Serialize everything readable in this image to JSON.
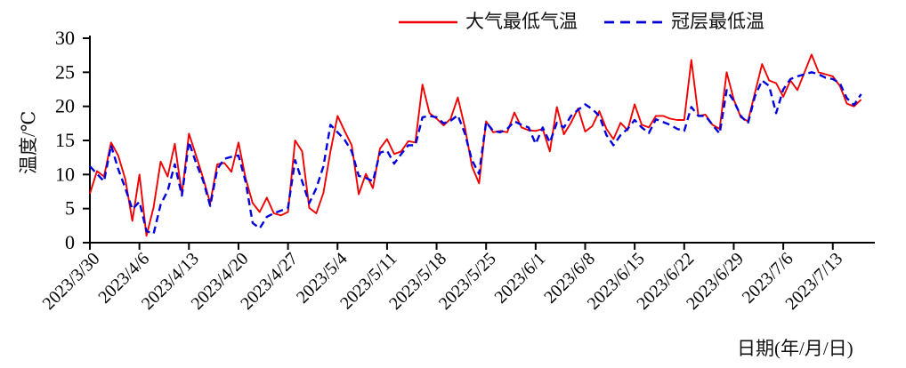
{
  "chart_data": {
    "type": "line",
    "title": "",
    "xlabel": "日期(年/月/日)",
    "ylabel": "温度/℃",
    "ylim": [
      0,
      30
    ],
    "y_ticks": [
      0,
      5,
      10,
      15,
      20,
      25,
      30
    ],
    "grid": false,
    "legend_position": "top-center",
    "x_unit": "day",
    "days_between_ticks": 7,
    "x_tick_labels": [
      "2023/3/30",
      "2023/4/6",
      "2023/4/13",
      "2023/4/20",
      "2023/4/27",
      "2023/5/4",
      "2023/5/11",
      "2023/5/18",
      "2023/5/25",
      "2023/6/1",
      "2023/6/8",
      "2023/6/15",
      "2023/6/22",
      "2023/6/29",
      "2023/7/6",
      "2023/7/13"
    ],
    "axis_color": "#000000",
    "series": [
      {
        "name": "大气最低气温",
        "color": "#f00000",
        "style": "solid",
        "values": [
          7.2,
          10.5,
          9.7,
          14.7,
          12.8,
          9.3,
          3.2,
          10.0,
          1.0,
          5.2,
          11.9,
          9.7,
          14.5,
          7.1,
          16.0,
          12.8,
          9.5,
          5.8,
          11.5,
          11.7,
          10.4,
          14.7,
          9.5,
          5.8,
          4.5,
          6.6,
          4.3,
          4.0,
          4.5,
          15.0,
          13.4,
          5.1,
          4.3,
          7.3,
          13.4,
          18.6,
          16.4,
          14.3,
          7.1,
          10.1,
          8.0,
          13.8,
          15.2,
          13.0,
          13.4,
          14.9,
          14.7,
          23.2,
          19.0,
          18.2,
          17.2,
          18.2,
          21.3,
          16.9,
          11.2,
          8.7,
          17.8,
          16.2,
          16.4,
          16.2,
          19.1,
          16.9,
          16.5,
          16.4,
          16.7,
          13.4,
          19.9,
          15.9,
          17.6,
          19.7,
          16.3,
          17.1,
          19.3,
          16.7,
          15.2,
          17.6,
          16.5,
          20.3,
          17.3,
          16.9,
          18.6,
          18.6,
          18.2,
          18.0,
          18.0,
          26.8,
          18.6,
          18.8,
          17.3,
          16.7,
          25.0,
          21.0,
          18.4,
          17.8,
          22.0,
          26.2,
          23.8,
          23.4,
          21.4,
          23.8,
          22.4,
          25.0,
          27.6,
          25.0,
          24.7,
          24.4,
          23.0,
          20.4,
          20.0,
          21.0
        ]
      },
      {
        "name": "冠层最低温",
        "color": "#0000dd",
        "style": "dashed",
        "values": [
          11.2,
          10.1,
          9.0,
          14.3,
          10.8,
          8.0,
          4.9,
          6.0,
          1.7,
          1.3,
          5.6,
          7.6,
          11.5,
          6.9,
          14.8,
          11.7,
          9.1,
          5.4,
          10.8,
          12.3,
          12.6,
          12.8,
          9.0,
          2.9,
          2.1,
          3.8,
          4.3,
          4.7,
          5.1,
          12.1,
          9.0,
          5.8,
          8.0,
          11.2,
          17.3,
          16.2,
          15.1,
          13.4,
          9.8,
          9.5,
          9.0,
          13.2,
          13.5,
          11.6,
          13.0,
          14.3,
          14.3,
          18.4,
          18.6,
          18.4,
          17.5,
          17.9,
          18.7,
          16.0,
          12.1,
          10.1,
          17.7,
          16.4,
          16.2,
          16.7,
          17.8,
          17.3,
          16.9,
          14.5,
          16.9,
          14.7,
          17.6,
          16.9,
          18.6,
          19.5,
          20.3,
          19.6,
          18.6,
          15.8,
          14.3,
          15.8,
          16.7,
          18.0,
          16.9,
          16.1,
          18.1,
          17.7,
          17.3,
          16.7,
          16.4,
          19.9,
          18.6,
          18.6,
          17.3,
          16.0,
          22.4,
          20.8,
          18.6,
          17.5,
          21.5,
          23.8,
          23.0,
          19.0,
          22.5,
          24.0,
          24.4,
          24.7,
          25.0,
          24.7,
          24.2,
          24.0,
          23.4,
          21.2,
          20.2,
          21.8
        ]
      }
    ]
  }
}
